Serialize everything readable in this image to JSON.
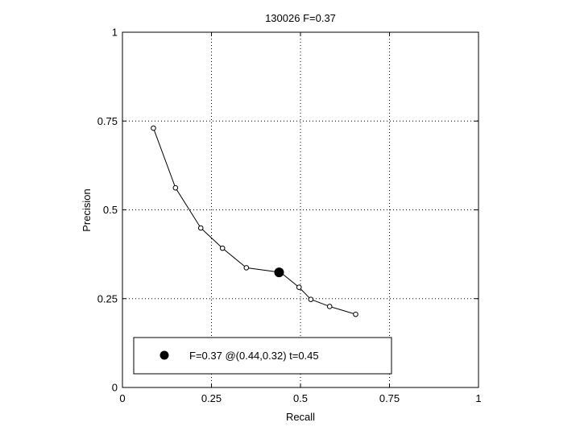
{
  "chart_data": {
    "type": "line",
    "title": "130026 F=0.37",
    "xlabel": "Recall",
    "ylabel": "Precision",
    "xlim": [
      0,
      1
    ],
    "ylim": [
      0,
      1
    ],
    "xticks": [
      0,
      0.25,
      0.5,
      0.75,
      1
    ],
    "yticks": [
      0,
      0.25,
      0.5,
      0.75,
      1
    ],
    "xtick_labels": [
      "0",
      "0.25",
      "0.5",
      "0.75",
      "1"
    ],
    "ytick_labels": [
      "0",
      "0.25",
      "0.5",
      "0.75",
      "1"
    ],
    "grid": true,
    "series": [
      {
        "x": [
          0.087,
          0.149,
          0.22,
          0.281,
          0.348,
          0.444,
          0.496,
          0.529,
          0.582,
          0.655
        ],
        "y": [
          0.73,
          0.562,
          0.449,
          0.392,
          0.337,
          0.324,
          0.282,
          0.248,
          0.228,
          0.206
        ],
        "color": "#000000",
        "marker": "open-circle"
      }
    ],
    "best_point": {
      "x": 0.44,
      "y": 0.32
    },
    "legend": {
      "text": "F=0.37 @(0.44,0.32) t=0.45",
      "position": "bottom"
    }
  }
}
